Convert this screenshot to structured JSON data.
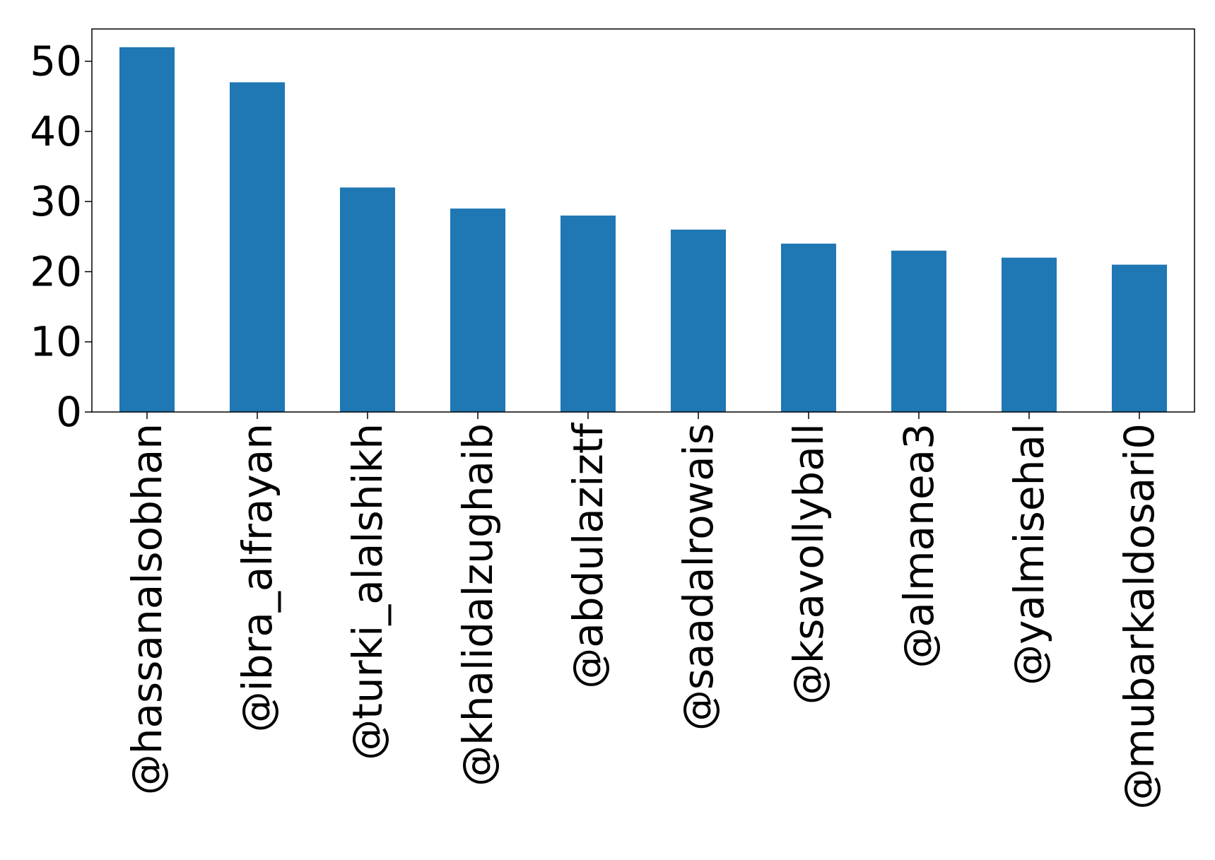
{
  "chart_data": {
    "type": "bar",
    "categories": [
      "@hassanalsobhan",
      "@ibra_alfrayan",
      "@turki_alalshikh",
      "@khalidalzughaib",
      "@abdulaziztf",
      "@saadalrowais",
      "@ksavollyball",
      "@almanea3",
      "@yalmisehal",
      "@mubarkaldosari0"
    ],
    "values": [
      52,
      47,
      32,
      29,
      28,
      26,
      24,
      23,
      22,
      21
    ],
    "ylim": [
      0,
      54.6
    ],
    "yticks": [
      0,
      10,
      20,
      30,
      40,
      50
    ],
    "ytick_labels": [
      "0",
      "10",
      "20",
      "30",
      "40",
      "50"
    ],
    "title": "",
    "xlabel": "",
    "ylabel": "",
    "grid": false,
    "bar_color": "#1f77b4"
  }
}
